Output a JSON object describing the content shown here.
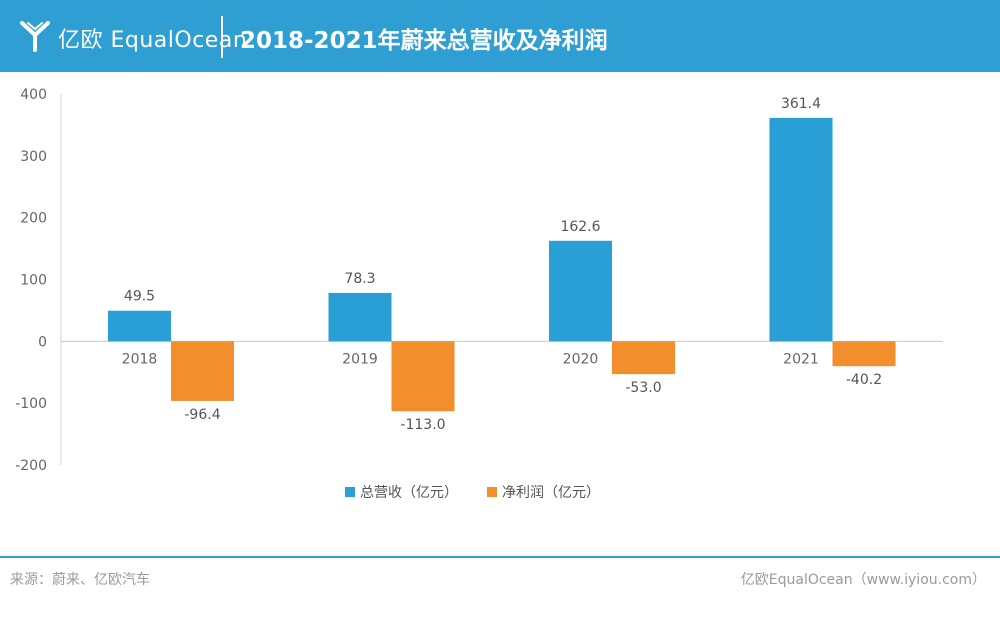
{
  "header": {
    "logo_text": "亿欧 EqualOcean",
    "title": "2018-2021年蔚来总营收及净利润"
  },
  "footer": {
    "source": "来源：蔚来、亿欧汽车",
    "credit": "亿欧EqualOcean（www.iyiou.com）"
  },
  "colors": {
    "header": "#2e9ed3",
    "revenue": "#2a9fd6",
    "profit": "#f28e2b"
  },
  "chart_data": {
    "type": "bar",
    "title": "2018-2021年蔚来总营收及净利润",
    "categories": [
      "2018",
      "2019",
      "2020",
      "2021"
    ],
    "series": [
      {
        "name": "总营收（亿元）",
        "values": [
          49.5,
          78.3,
          162.6,
          361.4
        ],
        "color": "#2a9fd6"
      },
      {
        "name": "净利润（亿元）",
        "values": [
          -96.4,
          -113.0,
          -53.0,
          -40.2
        ],
        "color": "#f28e2b"
      }
    ],
    "ylim": [
      -200,
      400
    ],
    "yticks": [
      "400",
      "300",
      "200",
      "100",
      "0",
      "-100",
      "-200"
    ],
    "data_labels": [
      [
        "49.5",
        "78.3",
        "162.6",
        "361.4"
      ],
      [
        "-96.4",
        "-113.0",
        "-53.0",
        "-40.2"
      ]
    ],
    "legend": "bottom-center",
    "grid": false
  }
}
